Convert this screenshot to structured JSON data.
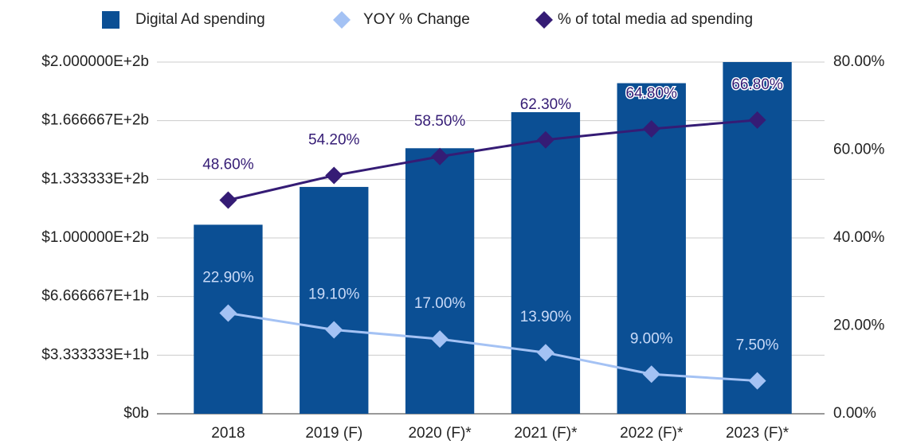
{
  "chart_data": {
    "type": "bar",
    "categories": [
      "2018",
      "2019 (F)",
      "2020 (F)*",
      "2021 (F)*",
      "2022 (F)*",
      "2023 (F)*"
    ],
    "series": [
      {
        "name": "Digital Ad spending",
        "type": "bar",
        "color": "#0b4f94",
        "values": [
          107.5,
          129,
          151,
          171.5,
          188,
          200
        ]
      },
      {
        "name": "YOY % Change",
        "type": "line",
        "axis": "y2",
        "color": "#a4c2f4",
        "values": [
          22.9,
          19.1,
          17.0,
          13.9,
          9.0,
          7.5
        ],
        "value_labels": [
          "22.90%",
          "19.10%",
          "17.00%",
          "13.90%",
          "9.00%",
          "7.50%"
        ]
      },
      {
        "name": "% of total media ad spending",
        "type": "line",
        "axis": "y2",
        "color": "#351c75",
        "values": [
          48.6,
          54.2,
          58.5,
          62.3,
          64.8,
          66.8
        ],
        "value_labels": [
          "48.60%",
          "54.20%",
          "58.50%",
          "62.30%",
          "64.80%",
          "66.80%"
        ]
      }
    ],
    "ylim": [
      0,
      200
    ],
    "yticks": [
      {
        "value": 0,
        "label": "$0b"
      },
      {
        "value": 33.3333,
        "label": "$3.333333E+1b"
      },
      {
        "value": 66.6667,
        "label": "$6.666667E+1b"
      },
      {
        "value": 100,
        "label": "$1.000000E+2b"
      },
      {
        "value": 133.3333,
        "label": "$1.333333E+2b"
      },
      {
        "value": 166.6667,
        "label": "$1.666667E+2b"
      },
      {
        "value": 200,
        "label": "$2.000000E+2b"
      }
    ],
    "y2lim": [
      0,
      80
    ],
    "y2ticks": [
      {
        "value": 0,
        "label": "0.00%"
      },
      {
        "value": 20,
        "label": "20.00%"
      },
      {
        "value": 40,
        "label": "40.00%"
      },
      {
        "value": 60,
        "label": "60.00%"
      },
      {
        "value": 80,
        "label": "80.00%"
      }
    ],
    "grid": true,
    "legend": "top"
  }
}
